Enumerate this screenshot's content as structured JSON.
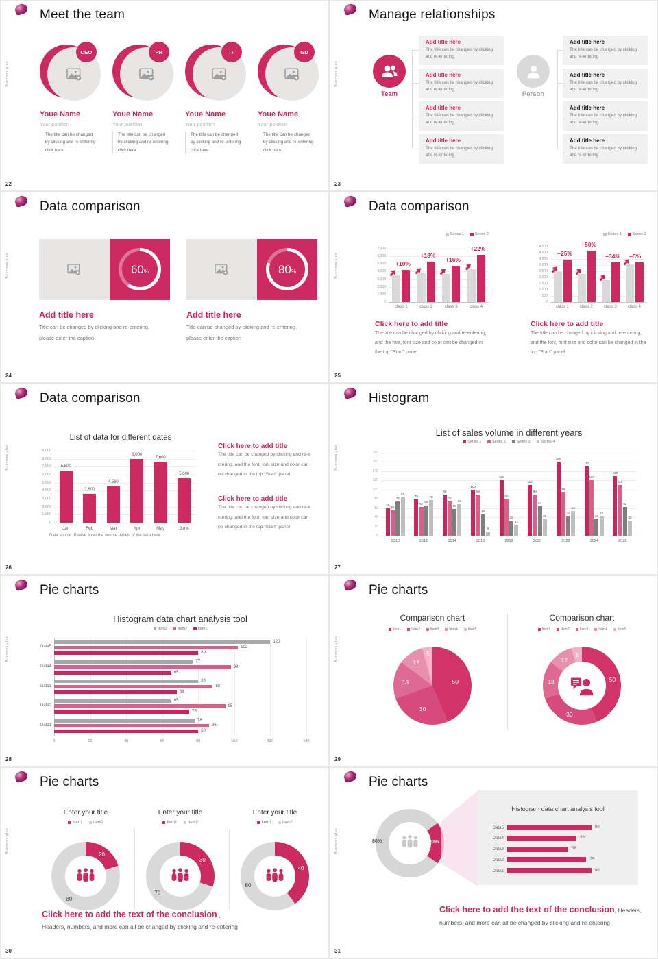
{
  "side_label": "Business plan",
  "colors": {
    "accent": "#cc2a60",
    "accent_dark": "#c9255b",
    "accent_mid": "#d8608c",
    "name_pink": "#c2265c",
    "gray_bar": "#d9d9d9",
    "gray_item": "#a8a8a8",
    "series3_gray": "#7f7f7f",
    "series4_gray": "#bfbfbf",
    "pie": [
      "#d23368",
      "#d74b7c",
      "#de6a93",
      "#e88fae",
      "#f0b3c9"
    ],
    "panel_bg": "#efefef",
    "funnel_pink": "#f7dce9"
  },
  "slides": [
    {
      "number": "22",
      "title": "Meet the team",
      "type": "team",
      "members": [
        {
          "badge": "CEO",
          "name": "Youe Name",
          "position": "Your position",
          "desc_lines": [
            "The title can be changed",
            "by clicking and re-entering",
            "click here"
          ]
        },
        {
          "badge": "PR",
          "name": "Youe Name",
          "position": "Your position",
          "desc_lines": [
            "The title can be changed",
            "by clicking and re-entering",
            "click here"
          ]
        },
        {
          "badge": "IT",
          "name": "Youe Name",
          "position": "Your position",
          "desc_lines": [
            "The title can be changed",
            "by clicking and re-entering",
            "click here"
          ]
        },
        {
          "badge": "GD",
          "name": "Youe Name",
          "position": "Your position",
          "desc_lines": [
            "The title can be changed",
            "by clicking and re-entering",
            "click here"
          ]
        }
      ]
    },
    {
      "number": "23",
      "title": "Manage relationships",
      "type": "relations",
      "groups": [
        {
          "label": "Team",
          "icon": "team-icon",
          "title_color": "accent",
          "items": [
            {
              "title": "Add title here",
              "body": "The title can be changed by clicking and re-entering"
            },
            {
              "title": "Add title here",
              "body": "The title can be changed by clicking and re-entering"
            },
            {
              "title": "Add title here",
              "body": "The title can be changed by clicking and re-entering"
            },
            {
              "title": "Add title here",
              "body": "The title can be changed by clicking and re-entering"
            }
          ]
        },
        {
          "label": "Person",
          "icon": "person-icon",
          "title_color": "dark",
          "items": [
            {
              "title": "Add title here",
              "body": "The title can be changed by clicking and re-entering"
            },
            {
              "title": "Add title here",
              "body": "The title can be changed by clicking and re-entering"
            },
            {
              "title": "Add title here",
              "body": "The title can be changed by clicking and re-entering"
            },
            {
              "title": "Add title here",
              "body": "The title can be changed by clicking and re-entering"
            }
          ]
        }
      ]
    },
    {
      "number": "24",
      "title": "Data comparison",
      "type": "progress",
      "blocks": [
        {
          "percent": 60,
          "percent_label": "60",
          "unit": "%",
          "title": "Add title here",
          "lines": [
            "Title can be changed by clicking and re-entering,",
            "please enter the caption"
          ]
        },
        {
          "percent": 80,
          "percent_label": "80",
          "unit": "%",
          "title": "Add title here",
          "lines": [
            "Title can be changed by clicking and re-entering,",
            "please enter the caption"
          ]
        }
      ]
    },
    {
      "number": "25",
      "title": "Data comparison",
      "type": "dualbars",
      "legend": [
        "Series 1",
        "Series 2"
      ],
      "chart_data": [
        {
          "type": "bar",
          "ymax": 7000,
          "yticks": [
            "0",
            "1,000",
            "2,000",
            "3,000",
            "4,000",
            "5,000",
            "6,000",
            "7,000"
          ],
          "categories": [
            "class 1",
            "class 2",
            "class 3",
            "class 4"
          ],
          "series": [
            {
              "name": "Series 1",
              "values": [
                3500,
                3800,
                3650,
                4300
              ]
            },
            {
              "name": "Series 2",
              "values": [
                4200,
                5300,
                4750,
                6150
              ]
            }
          ],
          "annotations": [
            "+10%",
            "+18%",
            "+16%",
            "+22%"
          ]
        },
        {
          "type": "bar",
          "ymax": 4500,
          "yticks": [
            "0",
            "500",
            "1,000",
            "1,500",
            "2,000",
            "2,500",
            "3,000",
            "3,500",
            "4,000",
            "4,500"
          ],
          "categories": [
            "class 1",
            "class 2",
            "class 3",
            "class 4"
          ],
          "series": [
            {
              "name": "Series 1",
              "values": [
                2450,
                2300,
                1800,
                3050
              ]
            },
            {
              "name": "Series 2",
              "values": [
                3450,
                4150,
                3200,
                3200
              ]
            }
          ],
          "annotations": [
            "+25%",
            "+50%",
            "+34%",
            "+5%"
          ]
        }
      ],
      "caption_title": "Click here to add title",
      "captions": [
        [
          "The title can be changed by clicking and re-entering,",
          "and the font, font size and color can be changed in",
          "the top \"Start\" panel"
        ],
        [
          "The title can be changed by clicking and re-entering,",
          "and the font, font size and color can be changed in the",
          "top \"Start\" panel"
        ]
      ]
    },
    {
      "number": "26",
      "title": "Data comparison",
      "type": "monthbar",
      "chart_data": {
        "type": "bar",
        "title": "List of data for different dates",
        "ymax": 9000,
        "yticks": [
          "0",
          "1,000",
          "2,000",
          "3,000",
          "4,000",
          "5,000",
          "6,000",
          "7,000",
          "8,000",
          "9,000"
        ],
        "categories": [
          "Jan",
          "Feb",
          "Mar",
          "Apr",
          "May",
          "June"
        ],
        "values": [
          6500,
          3600,
          4560,
          8000,
          7600,
          5600
        ],
        "value_labels": [
          "6,500",
          "3,600",
          "4,560",
          "8,000",
          "7,600",
          "5,600"
        ],
        "source": "Data source: Please enter the source details of the data here"
      },
      "blocks": [
        {
          "title": "Click here to add title",
          "lines": [
            "The title can be changed by clicking and re-e",
            "ntering, and the font, font size and color can",
            "be changed in the top \"Start\" panel"
          ]
        },
        {
          "title": "Click here to add title",
          "lines": [
            "The title can be changed by clicking and re-e",
            "ntering, and the font, font size and color can",
            "be changed in the top \"Start\" panel"
          ]
        }
      ]
    },
    {
      "number": "27",
      "title": "Histogram",
      "type": "histogram",
      "chart_data": {
        "type": "bar",
        "title": "List of sales volume in different years",
        "ymax": 180,
        "yticks": [
          "0",
          "20",
          "40",
          "60",
          "80",
          "100",
          "120",
          "140",
          "160",
          "180"
        ],
        "categories": [
          "2010",
          "2012",
          "2014",
          "2016",
          "2018",
          "2020",
          "2022",
          "2024",
          "2026"
        ],
        "series": [
          {
            "name": "Series 1",
            "values": [
              60,
              80,
              90,
              100,
              120,
              110,
              160,
              150,
              130
            ]
          },
          {
            "name": "Series 2",
            "values": [
              55,
              62,
              75,
              90,
              80,
              90,
              95,
              120,
              110
            ]
          },
          {
            "name": "Series 3",
            "values": [
              75,
              66,
              58,
              46,
              32,
              64,
              42,
              36,
              62
            ]
          },
          {
            "name": "Series 4",
            "values": [
              85,
              78,
              68,
              9,
              24,
              36,
              53,
              42,
              32
            ]
          }
        ]
      }
    },
    {
      "number": "28",
      "title": "Pie charts",
      "type": "hbars",
      "chart_data": {
        "type": "bar",
        "title": "Histogram data chart analysis tool",
        "xmax": 140,
        "xticks": [
          "0",
          "20",
          "40",
          "60",
          "80",
          "100",
          "120",
          "140"
        ],
        "categories": [
          "Data5",
          "Data4",
          "Data3",
          "Data2",
          "Data1"
        ],
        "series": [
          {
            "name": "Item3",
            "values": [
              120,
              77,
              80,
              65,
              78
            ]
          },
          {
            "name": "Item2",
            "values": [
              102,
              98,
              88,
              95,
              86
            ]
          },
          {
            "name": "Item1",
            "values": [
              80,
              65,
              68,
              75,
              80
            ]
          }
        ]
      }
    },
    {
      "number": "29",
      "title": "Pie charts",
      "type": "pies",
      "chart_data": [
        {
          "type": "pie",
          "kind": "pie",
          "title": "Comparison chart",
          "legend": [
            "Item1",
            "Item2",
            "Item3",
            "Item4",
            "Item5"
          ],
          "values": [
            50,
            30,
            18,
            12,
            5
          ]
        },
        {
          "type": "pie",
          "kind": "donut",
          "title": "Comparison chart",
          "legend": [
            "Item1",
            "Item2",
            "Item3",
            "Item4",
            "Item5"
          ],
          "values": [
            50,
            30,
            18,
            12,
            5
          ]
        }
      ]
    },
    {
      "number": "30",
      "title": "Pie charts",
      "type": "donuts",
      "chart_data": [
        {
          "type": "pie",
          "title": "Enter your title",
          "legend": [
            "Item1",
            "Item2"
          ],
          "values": [
            20,
            80
          ]
        },
        {
          "type": "pie",
          "title": "Enter your title",
          "legend": [
            "Item1",
            "Item2"
          ],
          "values": [
            30,
            70
          ]
        },
        {
          "type": "pie",
          "title": "Enter your title",
          "legend": [
            "Item1",
            "Item2"
          ],
          "values": [
            40,
            60
          ]
        }
      ],
      "conclusion": {
        "title": "Click here to add the text of the conclusion",
        "sep": " ,",
        "body": "Headers, numbers, and more can all be changed by clicking and re-entering"
      }
    },
    {
      "number": "31",
      "title": "Pie charts",
      "type": "funnel",
      "chart_data": {
        "type": "pie",
        "values": [
          20,
          80
        ],
        "gray_label": "80%",
        "pink_label": "20%",
        "panel": {
          "title": "Histogram data chart analysis tool",
          "categories": [
            "Data5",
            "Data4",
            "Data3",
            "Data2",
            "Data1"
          ],
          "values": [
            80,
            66,
            58,
            75,
            80
          ],
          "xmax": 140
        }
      },
      "conclusion": {
        "title": "Click here to add the text of the conclusion",
        "sep": ", ",
        "after": "Headers,",
        "body": "numbers, and more can all be changed by clicking and re-entering"
      }
    }
  ]
}
